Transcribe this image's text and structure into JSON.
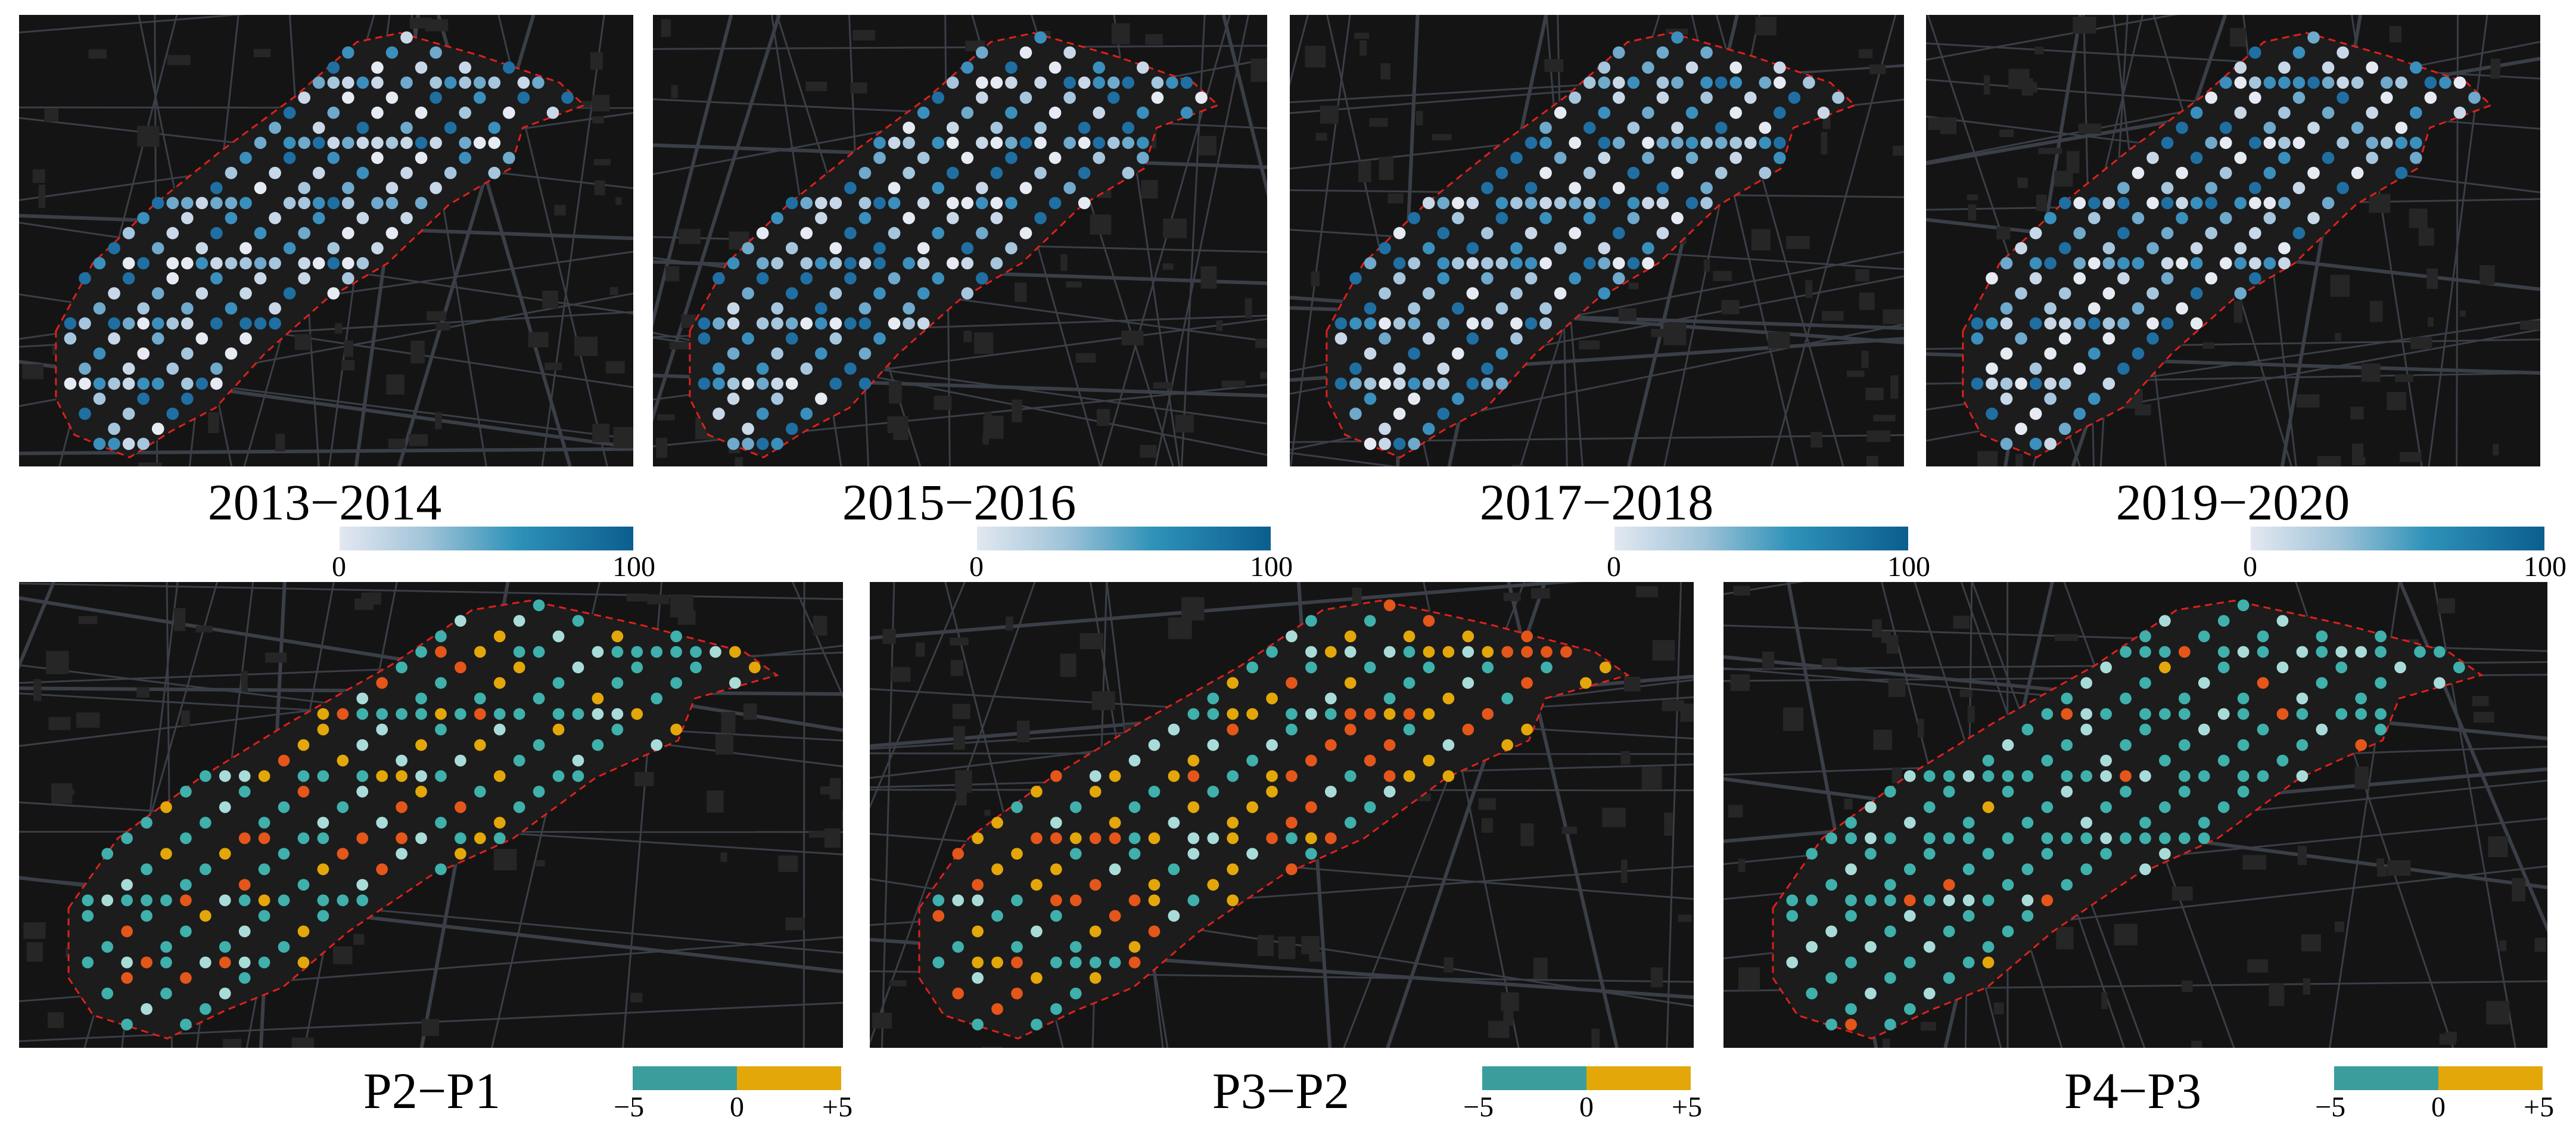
{
  "top_row": [
    {
      "title": "2013−2014",
      "scale_min": "0",
      "scale_max": "100"
    },
    {
      "title": "2015−2016",
      "scale_min": "0",
      "scale_max": "100"
    },
    {
      "title": "2017−2018",
      "scale_min": "0",
      "scale_max": "100"
    },
    {
      "title": "2019−2020",
      "scale_min": "0",
      "scale_max": "100"
    }
  ],
  "bottom_row": [
    {
      "title": "P2−P1",
      "scale_min": "−5",
      "scale_mid": "0",
      "scale_max": "+5"
    },
    {
      "title": "P3−P2",
      "scale_min": "−5",
      "scale_mid": "0",
      "scale_max": "+5"
    },
    {
      "title": "P4−P3",
      "scale_min": "−5",
      "scale_mid": "0",
      "scale_max": "+5"
    }
  ],
  "colors": {
    "map_bg": "#141414",
    "road": "#3a3e47",
    "boundary": "#e0201b",
    "seq_low": "#e3e8f1",
    "seq_high": "#0b5e8f",
    "div_neg": "#3a9e9c",
    "div_pos": "#e3a70a"
  }
}
